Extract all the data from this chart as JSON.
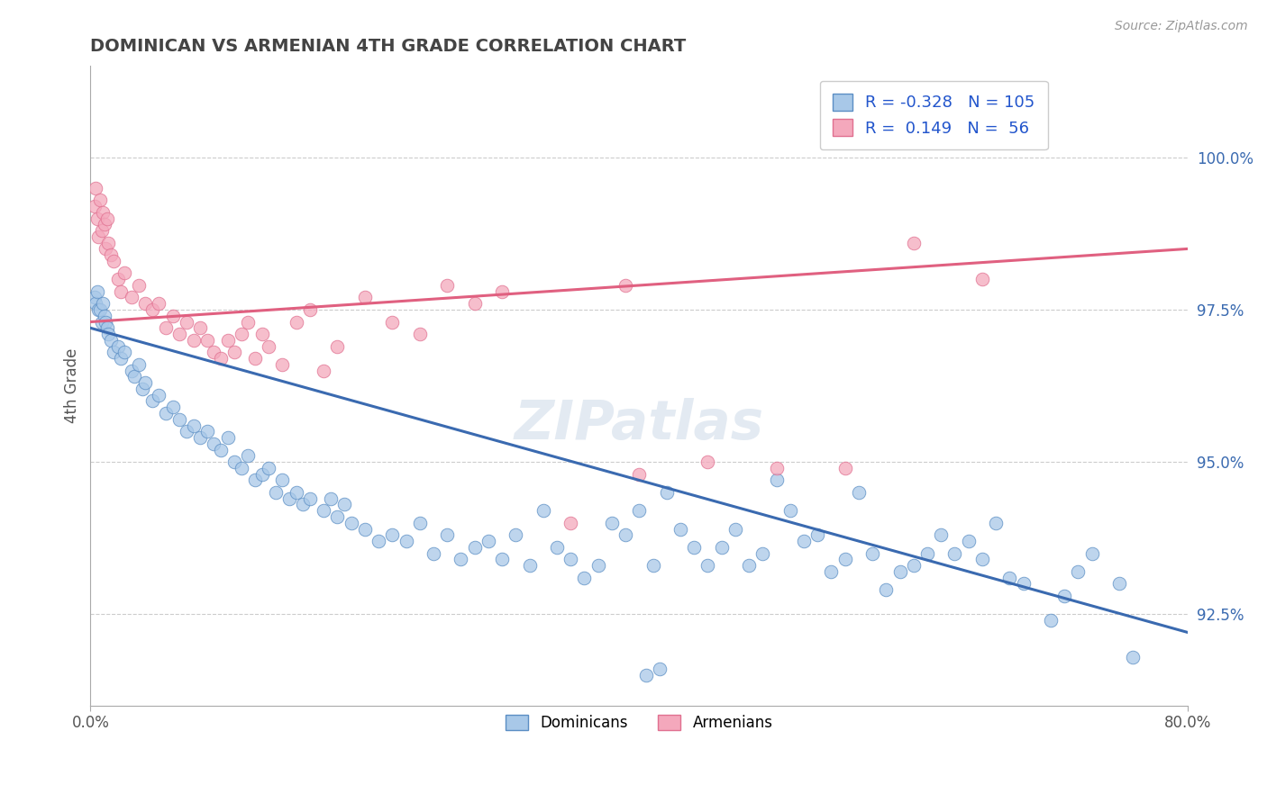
{
  "title": "DOMINICAN VS ARMENIAN 4TH GRADE CORRELATION CHART",
  "source": "Source: ZipAtlas.com",
  "ylabel": "4th Grade",
  "R_blue": -0.328,
  "N_blue": 105,
  "R_pink": 0.149,
  "N_pink": 56,
  "blue_color": "#a8c8e8",
  "pink_color": "#f4a8bc",
  "blue_edge_color": "#5b8ec4",
  "pink_edge_color": "#e07090",
  "blue_line_color": "#3a6ab0",
  "pink_line_color": "#e06080",
  "watermark": "ZIPatlas",
  "blue_line_x0": 0.0,
  "blue_line_y0": 97.2,
  "blue_line_x1": 80.0,
  "blue_line_y1": 92.2,
  "pink_line_x0": 0.0,
  "pink_line_y0": 97.3,
  "pink_line_x1": 80.0,
  "pink_line_y1": 98.5,
  "blue_dots": [
    [
      0.3,
      97.7
    ],
    [
      0.4,
      97.6
    ],
    [
      0.5,
      97.8
    ],
    [
      0.6,
      97.5
    ],
    [
      0.7,
      97.5
    ],
    [
      0.8,
      97.3
    ],
    [
      0.9,
      97.6
    ],
    [
      1.0,
      97.4
    ],
    [
      1.1,
      97.3
    ],
    [
      1.2,
      97.2
    ],
    [
      1.3,
      97.1
    ],
    [
      1.5,
      97.0
    ],
    [
      1.7,
      96.8
    ],
    [
      2.0,
      96.9
    ],
    [
      2.2,
      96.7
    ],
    [
      2.5,
      96.8
    ],
    [
      3.0,
      96.5
    ],
    [
      3.2,
      96.4
    ],
    [
      3.5,
      96.6
    ],
    [
      3.8,
      96.2
    ],
    [
      4.0,
      96.3
    ],
    [
      4.5,
      96.0
    ],
    [
      5.0,
      96.1
    ],
    [
      5.5,
      95.8
    ],
    [
      6.0,
      95.9
    ],
    [
      6.5,
      95.7
    ],
    [
      7.0,
      95.5
    ],
    [
      7.5,
      95.6
    ],
    [
      8.0,
      95.4
    ],
    [
      8.5,
      95.5
    ],
    [
      9.0,
      95.3
    ],
    [
      9.5,
      95.2
    ],
    [
      10.0,
      95.4
    ],
    [
      10.5,
      95.0
    ],
    [
      11.0,
      94.9
    ],
    [
      11.5,
      95.1
    ],
    [
      12.0,
      94.7
    ],
    [
      12.5,
      94.8
    ],
    [
      13.0,
      94.9
    ],
    [
      13.5,
      94.5
    ],
    [
      14.0,
      94.7
    ],
    [
      14.5,
      94.4
    ],
    [
      15.0,
      94.5
    ],
    [
      15.5,
      94.3
    ],
    [
      16.0,
      94.4
    ],
    [
      17.0,
      94.2
    ],
    [
      17.5,
      94.4
    ],
    [
      18.0,
      94.1
    ],
    [
      18.5,
      94.3
    ],
    [
      19.0,
      94.0
    ],
    [
      20.0,
      93.9
    ],
    [
      21.0,
      93.7
    ],
    [
      22.0,
      93.8
    ],
    [
      23.0,
      93.7
    ],
    [
      24.0,
      94.0
    ],
    [
      25.0,
      93.5
    ],
    [
      26.0,
      93.8
    ],
    [
      27.0,
      93.4
    ],
    [
      28.0,
      93.6
    ],
    [
      29.0,
      93.7
    ],
    [
      30.0,
      93.4
    ],
    [
      31.0,
      93.8
    ],
    [
      32.0,
      93.3
    ],
    [
      33.0,
      94.2
    ],
    [
      34.0,
      93.6
    ],
    [
      35.0,
      93.4
    ],
    [
      36.0,
      93.1
    ],
    [
      37.0,
      93.3
    ],
    [
      38.0,
      94.0
    ],
    [
      39.0,
      93.8
    ],
    [
      40.0,
      94.2
    ],
    [
      41.0,
      93.3
    ],
    [
      42.0,
      94.5
    ],
    [
      43.0,
      93.9
    ],
    [
      44.0,
      93.6
    ],
    [
      45.0,
      93.3
    ],
    [
      46.0,
      93.6
    ],
    [
      47.0,
      93.9
    ],
    [
      48.0,
      93.3
    ],
    [
      49.0,
      93.5
    ],
    [
      50.0,
      94.7
    ],
    [
      51.0,
      94.2
    ],
    [
      52.0,
      93.7
    ],
    [
      53.0,
      93.8
    ],
    [
      54.0,
      93.2
    ],
    [
      55.0,
      93.4
    ],
    [
      56.0,
      94.5
    ],
    [
      57.0,
      93.5
    ],
    [
      58.0,
      92.9
    ],
    [
      59.0,
      93.2
    ],
    [
      60.0,
      93.3
    ],
    [
      61.0,
      93.5
    ],
    [
      62.0,
      93.8
    ],
    [
      63.0,
      93.5
    ],
    [
      64.0,
      93.7
    ],
    [
      65.0,
      93.4
    ],
    [
      66.0,
      94.0
    ],
    [
      67.0,
      93.1
    ],
    [
      68.0,
      93.0
    ],
    [
      70.0,
      92.4
    ],
    [
      71.0,
      92.8
    ],
    [
      72.0,
      93.2
    ],
    [
      73.0,
      93.5
    ],
    [
      75.0,
      93.0
    ],
    [
      76.0,
      91.8
    ],
    [
      40.5,
      91.5
    ],
    [
      41.5,
      91.6
    ]
  ],
  "pink_dots": [
    [
      0.3,
      99.2
    ],
    [
      0.4,
      99.5
    ],
    [
      0.5,
      99.0
    ],
    [
      0.6,
      98.7
    ],
    [
      0.7,
      99.3
    ],
    [
      0.8,
      98.8
    ],
    [
      0.9,
      99.1
    ],
    [
      1.0,
      98.9
    ],
    [
      1.1,
      98.5
    ],
    [
      1.2,
      99.0
    ],
    [
      1.3,
      98.6
    ],
    [
      1.5,
      98.4
    ],
    [
      1.7,
      98.3
    ],
    [
      2.0,
      98.0
    ],
    [
      2.2,
      97.8
    ],
    [
      2.5,
      98.1
    ],
    [
      3.0,
      97.7
    ],
    [
      3.5,
      97.9
    ],
    [
      4.0,
      97.6
    ],
    [
      4.5,
      97.5
    ],
    [
      5.0,
      97.6
    ],
    [
      5.5,
      97.2
    ],
    [
      6.0,
      97.4
    ],
    [
      6.5,
      97.1
    ],
    [
      7.0,
      97.3
    ],
    [
      7.5,
      97.0
    ],
    [
      8.0,
      97.2
    ],
    [
      8.5,
      97.0
    ],
    [
      9.0,
      96.8
    ],
    [
      9.5,
      96.7
    ],
    [
      10.0,
      97.0
    ],
    [
      10.5,
      96.8
    ],
    [
      11.0,
      97.1
    ],
    [
      11.5,
      97.3
    ],
    [
      12.0,
      96.7
    ],
    [
      12.5,
      97.1
    ],
    [
      13.0,
      96.9
    ],
    [
      14.0,
      96.6
    ],
    [
      15.0,
      97.3
    ],
    [
      16.0,
      97.5
    ],
    [
      17.0,
      96.5
    ],
    [
      18.0,
      96.9
    ],
    [
      20.0,
      97.7
    ],
    [
      22.0,
      97.3
    ],
    [
      24.0,
      97.1
    ],
    [
      26.0,
      97.9
    ],
    [
      28.0,
      97.6
    ],
    [
      30.0,
      97.8
    ],
    [
      35.0,
      94.0
    ],
    [
      39.0,
      97.9
    ],
    [
      40.0,
      94.8
    ],
    [
      45.0,
      95.0
    ],
    [
      50.0,
      94.9
    ],
    [
      55.0,
      94.9
    ],
    [
      60.0,
      98.6
    ],
    [
      65.0,
      98.0
    ]
  ],
  "xlim": [
    0.0,
    80.0
  ],
  "ylim": [
    91.0,
    101.5
  ],
  "yticks_right": [
    92.5,
    95.0,
    97.5,
    100.0
  ],
  "grid_color": "#cccccc",
  "background_color": "#ffffff",
  "title_color": "#444444",
  "axis_color": "#aaaaaa",
  "ylabel_color": "#555555",
  "tick_color": "#555555"
}
